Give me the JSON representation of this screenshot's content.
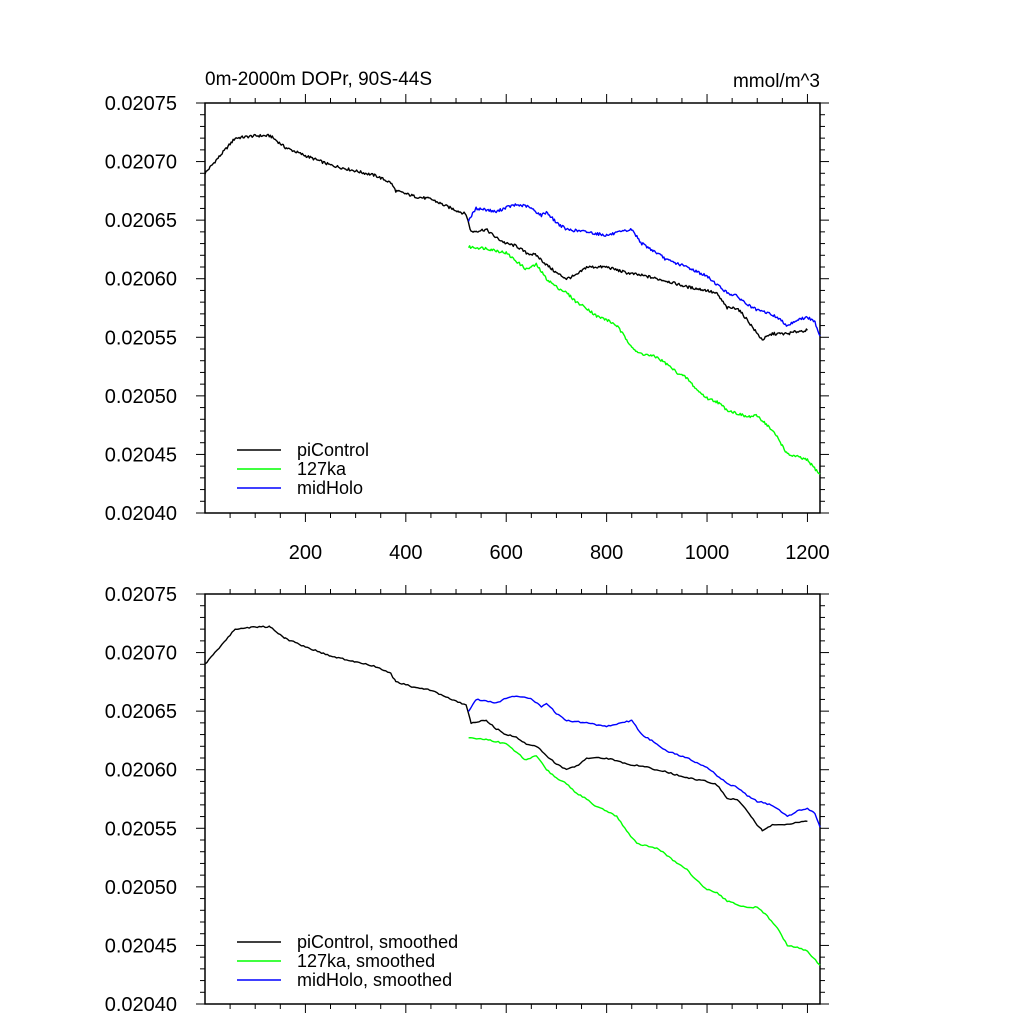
{
  "chart_data": [
    {
      "type": "line",
      "title": "0m-2000m DOPr, 90S-44S",
      "units": "mmol/m^3",
      "xlabel": "",
      "ylabel": "",
      "xlim": [
        0,
        1225
      ],
      "ylim": [
        0.0204,
        0.02075
      ],
      "xticks": [
        200,
        400,
        600,
        800,
        1000,
        1200
      ],
      "xtick_labels": [
        "200",
        "400",
        "600",
        "800",
        "1000",
        "1200"
      ],
      "yticks": [
        0.0204,
        0.02045,
        0.0205,
        0.02055,
        0.0206,
        0.02065,
        0.0207,
        0.02075
      ],
      "ytick_labels": [
        "0.02040",
        "0.02045",
        "0.02050",
        "0.02055",
        "0.02060",
        "0.02065",
        "0.02070",
        "0.02075"
      ],
      "legend_position": "bottom-left",
      "smoothed": false,
      "series": [
        {
          "name": "piControl",
          "color": "#000000",
          "points": [
            [
              0,
              0.02069
            ],
            [
              30,
              0.020705
            ],
            [
              60,
              0.02072
            ],
            [
              100,
              0.020722
            ],
            [
              130,
              0.020722
            ],
            [
              160,
              0.020712
            ],
            [
              200,
              0.020705
            ],
            [
              250,
              0.020697
            ],
            [
              300,
              0.020692
            ],
            [
              340,
              0.020688
            ],
            [
              370,
              0.020682
            ],
            [
              380,
              0.020675
            ],
            [
              420,
              0.02067
            ],
            [
              450,
              0.020668
            ],
            [
              480,
              0.020662
            ],
            [
              520,
              0.020655
            ],
            [
              530,
              0.02064
            ],
            [
              560,
              0.020642
            ],
            [
              580,
              0.020635
            ],
            [
              600,
              0.02063
            ],
            [
              620,
              0.020628
            ],
            [
              640,
              0.020622
            ],
            [
              660,
              0.02062
            ],
            [
              680,
              0.020612
            ],
            [
              700,
              0.020605
            ],
            [
              720,
              0.0206
            ],
            [
              740,
              0.020603
            ],
            [
              760,
              0.02061
            ],
            [
              800,
              0.02061
            ],
            [
              840,
              0.020605
            ],
            [
              880,
              0.020602
            ],
            [
              920,
              0.020598
            ],
            [
              960,
              0.020593
            ],
            [
              1000,
              0.02059
            ],
            [
              1020,
              0.020587
            ],
            [
              1040,
              0.020575
            ],
            [
              1060,
              0.020575
            ],
            [
              1080,
              0.020565
            ],
            [
              1100,
              0.020553
            ],
            [
              1110,
              0.020548
            ],
            [
              1130,
              0.020553
            ],
            [
              1160,
              0.020553
            ],
            [
              1180,
              0.020555
            ],
            [
              1200,
              0.020556
            ]
          ]
        },
        {
          "name": "127ka",
          "color": "#00ff00",
          "points": [
            [
              525,
              0.020627
            ],
            [
              560,
              0.020626
            ],
            [
              600,
              0.020622
            ],
            [
              620,
              0.020615
            ],
            [
              640,
              0.020608
            ],
            [
              660,
              0.020612
            ],
            [
              680,
              0.0206
            ],
            [
              700,
              0.020593
            ],
            [
              720,
              0.020588
            ],
            [
              740,
              0.02058
            ],
            [
              760,
              0.020575
            ],
            [
              780,
              0.020568
            ],
            [
              800,
              0.020565
            ],
            [
              820,
              0.02056
            ],
            [
              840,
              0.020548
            ],
            [
              860,
              0.020537
            ],
            [
              880,
              0.020535
            ],
            [
              900,
              0.020533
            ],
            [
              920,
              0.020527
            ],
            [
              940,
              0.02052
            ],
            [
              960,
              0.020515
            ],
            [
              980,
              0.020505
            ],
            [
              1000,
              0.020498
            ],
            [
              1020,
              0.020495
            ],
            [
              1040,
              0.020488
            ],
            [
              1060,
              0.020485
            ],
            [
              1080,
              0.020482
            ],
            [
              1100,
              0.020483
            ],
            [
              1120,
              0.020475
            ],
            [
              1140,
              0.020465
            ],
            [
              1160,
              0.02045
            ],
            [
              1180,
              0.020448
            ],
            [
              1200,
              0.020445
            ],
            [
              1225,
              0.020433
            ]
          ]
        },
        {
          "name": "midHolo",
          "color": "#0000ff",
          "points": [
            [
              525,
              0.02065
            ],
            [
              540,
              0.02066
            ],
            [
              560,
              0.020659
            ],
            [
              580,
              0.020657
            ],
            [
              600,
              0.020661
            ],
            [
              620,
              0.020663
            ],
            [
              640,
              0.020662
            ],
            [
              650,
              0.02066
            ],
            [
              670,
              0.020654
            ],
            [
              680,
              0.020657
            ],
            [
              700,
              0.020648
            ],
            [
              720,
              0.020642
            ],
            [
              760,
              0.02064
            ],
            [
              800,
              0.020637
            ],
            [
              820,
              0.020639
            ],
            [
              850,
              0.020642
            ],
            [
              870,
              0.02063
            ],
            [
              900,
              0.020622
            ],
            [
              920,
              0.020616
            ],
            [
              960,
              0.02061
            ],
            [
              1000,
              0.020602
            ],
            [
              1020,
              0.020595
            ],
            [
              1040,
              0.020588
            ],
            [
              1060,
              0.020585
            ],
            [
              1080,
              0.020578
            ],
            [
              1100,
              0.020573
            ],
            [
              1120,
              0.020571
            ],
            [
              1140,
              0.020567
            ],
            [
              1160,
              0.02056
            ],
            [
              1180,
              0.020565
            ],
            [
              1200,
              0.020567
            ],
            [
              1215,
              0.020563
            ],
            [
              1225,
              0.020551
            ]
          ]
        }
      ]
    },
    {
      "type": "line",
      "title": "",
      "units": "",
      "xlabel": "",
      "ylabel": "",
      "xlim": [
        0,
        1225
      ],
      "ylim": [
        0.0204,
        0.02075
      ],
      "xticks": [
        200,
        400,
        600,
        800,
        1000,
        1200
      ],
      "xtick_labels": [],
      "yticks": [
        0.0204,
        0.02045,
        0.0205,
        0.02055,
        0.0206,
        0.02065,
        0.0207,
        0.02075
      ],
      "ytick_labels": [
        "0.02040",
        "0.02045",
        "0.02050",
        "0.02055",
        "0.02060",
        "0.02065",
        "0.02070",
        "0.02075"
      ],
      "legend_position": "bottom-left",
      "smoothed": true,
      "series": [
        {
          "name": "piControl, smoothed",
          "color": "#000000",
          "points": [
            [
              0,
              0.02069
            ],
            [
              30,
              0.020705
            ],
            [
              60,
              0.02072
            ],
            [
              100,
              0.020722
            ],
            [
              130,
              0.020722
            ],
            [
              160,
              0.020712
            ],
            [
              200,
              0.020705
            ],
            [
              250,
              0.020697
            ],
            [
              300,
              0.020692
            ],
            [
              340,
              0.020688
            ],
            [
              370,
              0.020682
            ],
            [
              380,
              0.020675
            ],
            [
              420,
              0.02067
            ],
            [
              450,
              0.020668
            ],
            [
              480,
              0.020662
            ],
            [
              520,
              0.020655
            ],
            [
              530,
              0.02064
            ],
            [
              560,
              0.020642
            ],
            [
              580,
              0.020635
            ],
            [
              600,
              0.02063
            ],
            [
              620,
              0.020628
            ],
            [
              640,
              0.020622
            ],
            [
              660,
              0.02062
            ],
            [
              680,
              0.020612
            ],
            [
              700,
              0.020605
            ],
            [
              720,
              0.0206
            ],
            [
              740,
              0.020603
            ],
            [
              760,
              0.02061
            ],
            [
              800,
              0.02061
            ],
            [
              840,
              0.020605
            ],
            [
              880,
              0.020602
            ],
            [
              920,
              0.020598
            ],
            [
              960,
              0.020593
            ],
            [
              1000,
              0.02059
            ],
            [
              1020,
              0.020587
            ],
            [
              1040,
              0.020575
            ],
            [
              1060,
              0.020575
            ],
            [
              1080,
              0.020565
            ],
            [
              1100,
              0.020553
            ],
            [
              1110,
              0.020548
            ],
            [
              1130,
              0.020553
            ],
            [
              1160,
              0.020553
            ],
            [
              1180,
              0.020555
            ],
            [
              1200,
              0.020556
            ]
          ]
        },
        {
          "name": "127ka, smoothed",
          "color": "#00ff00",
          "points": [
            [
              525,
              0.020627
            ],
            [
              560,
              0.020626
            ],
            [
              600,
              0.020622
            ],
            [
              620,
              0.020615
            ],
            [
              640,
              0.020608
            ],
            [
              660,
              0.020612
            ],
            [
              680,
              0.0206
            ],
            [
              700,
              0.020593
            ],
            [
              720,
              0.020588
            ],
            [
              740,
              0.02058
            ],
            [
              760,
              0.020575
            ],
            [
              780,
              0.020568
            ],
            [
              800,
              0.020565
            ],
            [
              820,
              0.02056
            ],
            [
              840,
              0.020548
            ],
            [
              860,
              0.020537
            ],
            [
              880,
              0.020535
            ],
            [
              900,
              0.020533
            ],
            [
              920,
              0.020527
            ],
            [
              940,
              0.02052
            ],
            [
              960,
              0.020515
            ],
            [
              980,
              0.020505
            ],
            [
              1000,
              0.020498
            ],
            [
              1020,
              0.020495
            ],
            [
              1040,
              0.020488
            ],
            [
              1060,
              0.020485
            ],
            [
              1080,
              0.020482
            ],
            [
              1100,
              0.020483
            ],
            [
              1120,
              0.020475
            ],
            [
              1140,
              0.020465
            ],
            [
              1160,
              0.02045
            ],
            [
              1180,
              0.020448
            ],
            [
              1200,
              0.020445
            ],
            [
              1225,
              0.020433
            ]
          ]
        },
        {
          "name": "midHolo, smoothed",
          "color": "#0000ff",
          "points": [
            [
              525,
              0.02065
            ],
            [
              540,
              0.02066
            ],
            [
              560,
              0.020659
            ],
            [
              580,
              0.020657
            ],
            [
              600,
              0.020661
            ],
            [
              620,
              0.020663
            ],
            [
              640,
              0.020662
            ],
            [
              650,
              0.02066
            ],
            [
              670,
              0.020654
            ],
            [
              680,
              0.020657
            ],
            [
              700,
              0.020648
            ],
            [
              720,
              0.020642
            ],
            [
              760,
              0.02064
            ],
            [
              800,
              0.020637
            ],
            [
              820,
              0.020639
            ],
            [
              850,
              0.020642
            ],
            [
              870,
              0.02063
            ],
            [
              900,
              0.020622
            ],
            [
              920,
              0.020616
            ],
            [
              960,
              0.02061
            ],
            [
              1000,
              0.020602
            ],
            [
              1020,
              0.020595
            ],
            [
              1040,
              0.020588
            ],
            [
              1060,
              0.020585
            ],
            [
              1080,
              0.020578
            ],
            [
              1100,
              0.020573
            ],
            [
              1120,
              0.020571
            ],
            [
              1140,
              0.020567
            ],
            [
              1160,
              0.02056
            ],
            [
              1180,
              0.020565
            ],
            [
              1200,
              0.020567
            ],
            [
              1215,
              0.020563
            ],
            [
              1225,
              0.020551
            ]
          ]
        }
      ]
    }
  ]
}
